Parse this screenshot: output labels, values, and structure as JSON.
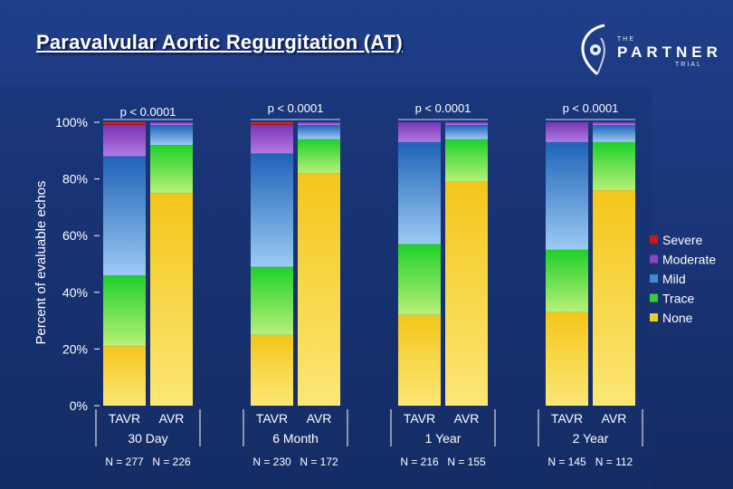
{
  "title": "Paravalvular Aortic Regurgitation (AT)",
  "logo": {
    "the": "THE",
    "name": "PARTNER",
    "trial": "TRIAL"
  },
  "chart_data": {
    "type": "bar",
    "stacked": true,
    "title": "Paravalvular Aortic Regurgitation (AT)",
    "ylabel": "Percent of evaluable echos",
    "ylim": [
      0,
      100
    ],
    "yticks": [
      "0%",
      "20%",
      "40%",
      "60%",
      "80%",
      "100%"
    ],
    "legend_position": "right",
    "series_names": [
      "Severe",
      "Moderate",
      "Mild",
      "Trace",
      "None"
    ],
    "colors": {
      "Severe": "#cc1a1a",
      "Moderate": "#8a44c4",
      "Mild": "#3f8ad6",
      "Trace": "#33d22a",
      "None": "#f2cf22"
    },
    "groups": [
      {
        "label": "30 Day",
        "p_value": "p < 0.0001",
        "bars": [
          {
            "label": "TAVR",
            "n": "N = 277",
            "values": {
              "None": 21,
              "Trace": 25,
              "Mild": 42,
              "Moderate": 11,
              "Severe": 1
            }
          },
          {
            "label": "AVR",
            "n": "N = 226",
            "values": {
              "None": 75,
              "Trace": 17,
              "Mild": 7,
              "Moderate": 1,
              "Severe": 0
            }
          }
        ]
      },
      {
        "label": "6 Month",
        "p_value": "p < 0.0001",
        "bars": [
          {
            "label": "TAVR",
            "n": "N = 230",
            "values": {
              "None": 25,
              "Trace": 24,
              "Mild": 40,
              "Moderate": 10,
              "Severe": 1
            }
          },
          {
            "label": "AVR",
            "n": "N = 172",
            "values": {
              "None": 82,
              "Trace": 12,
              "Mild": 5,
              "Moderate": 1,
              "Severe": 0
            }
          }
        ]
      },
      {
        "label": "1 Year",
        "p_value": "p < 0.0001",
        "bars": [
          {
            "label": "TAVR",
            "n": "N = 216",
            "values": {
              "None": 32,
              "Trace": 25,
              "Mild": 36,
              "Moderate": 7,
              "Severe": 0
            }
          },
          {
            "label": "AVR",
            "n": "N = 155",
            "values": {
              "None": 79,
              "Trace": 15,
              "Mild": 5,
              "Moderate": 1,
              "Severe": 0
            }
          }
        ]
      },
      {
        "label": "2 Year",
        "p_value": "p < 0.0001",
        "bars": [
          {
            "label": "TAVR",
            "n": "N = 145",
            "values": {
              "None": 33,
              "Trace": 22,
              "Mild": 38,
              "Moderate": 7,
              "Severe": 0
            }
          },
          {
            "label": "AVR",
            "n": "N = 112",
            "values": {
              "None": 76,
              "Trace": 17,
              "Mild": 6,
              "Moderate": 1,
              "Severe": 0
            }
          }
        ]
      }
    ]
  }
}
